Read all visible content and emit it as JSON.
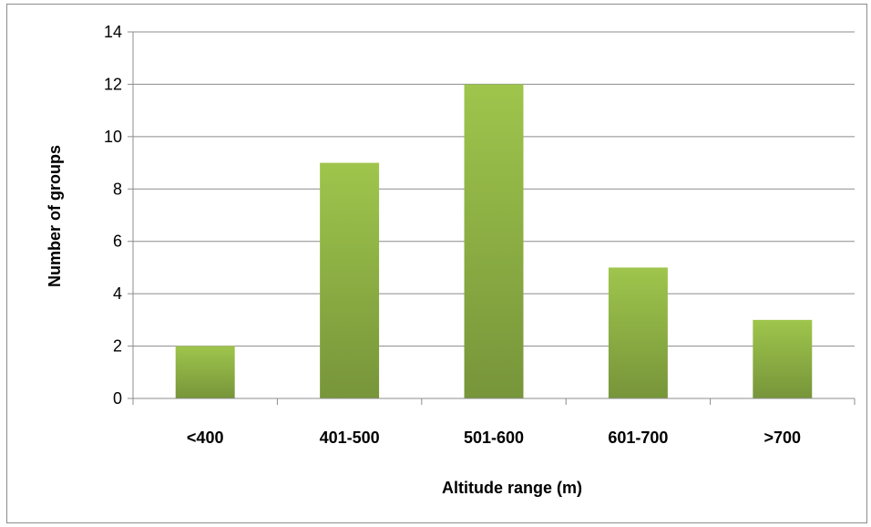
{
  "chart_data": {
    "type": "bar",
    "categories": [
      "<400",
      "401-500",
      "501-600",
      "601-700",
      ">700"
    ],
    "values": [
      2,
      9,
      12,
      5,
      3
    ],
    "title": "",
    "xlabel": "Altitude range (m)",
    "ylabel": "Number of groups",
    "ylim": [
      0,
      14
    ],
    "yticks": [
      0,
      2,
      4,
      6,
      8,
      10,
      12,
      14
    ],
    "grid": true,
    "legend": "none",
    "colors": {
      "bar_top": "#9fc54c",
      "bar_bottom": "#77953a",
      "grid": "#8c8c8c",
      "axis": "#8c8c8c"
    }
  }
}
